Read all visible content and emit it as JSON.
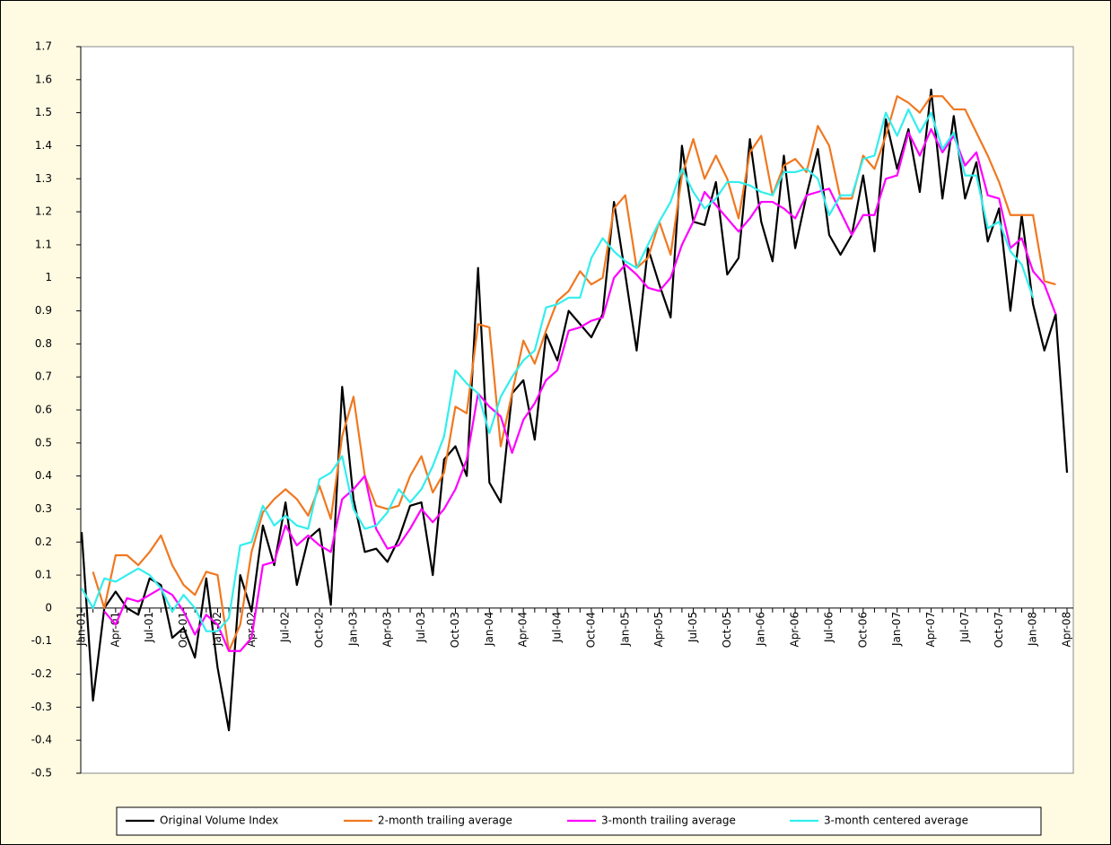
{
  "chart_data": {
    "type": "line",
    "categories": [
      "Jan-01",
      null,
      null,
      "Apr-01",
      null,
      null,
      "Jul-01",
      null,
      null,
      "Oct-01",
      null,
      null,
      "Jan-02",
      null,
      null,
      "Apr-02",
      null,
      null,
      "Jul-02",
      null,
      null,
      "Oct-02",
      null,
      null,
      "Jan-03",
      null,
      null,
      "Apr-03",
      null,
      null,
      "Jul-03",
      null,
      null,
      "Oct-03",
      null,
      null,
      "Jan-04",
      null,
      null,
      "Apr-04",
      null,
      null,
      "Jul-04",
      null,
      null,
      "Oct-04",
      null,
      null,
      "Jan-05",
      null,
      null,
      "Apr-05",
      null,
      null,
      "Jul-05",
      null,
      null,
      "Oct-05",
      null,
      null,
      "Jan-06",
      null,
      null,
      "Apr-06",
      null,
      null,
      "Jul-06",
      null,
      null,
      "Oct-06",
      null,
      null,
      "Jan-07",
      null,
      null,
      "Apr-07",
      null,
      null,
      "Jul-07",
      null,
      null,
      "Oct-07",
      null,
      null,
      "Jan-08",
      null,
      null,
      "Apr-08"
    ],
    "series": [
      {
        "name": "Original Volume Index",
        "color": "#000000",
        "values": [
          0.23,
          -0.28,
          0.0,
          0.05,
          0.0,
          -0.02,
          0.09,
          0.07,
          -0.09,
          -0.06,
          -0.15,
          0.09,
          -0.18,
          -0.37,
          0.1,
          -0.01,
          0.25,
          0.13,
          0.32,
          0.07,
          0.21,
          0.24,
          0.01,
          0.67,
          0.33,
          0.17,
          0.18,
          0.14,
          0.21,
          0.31,
          0.32,
          0.1,
          0.45,
          0.49,
          0.4,
          1.03,
          0.38,
          0.32,
          0.65,
          0.69,
          0.51,
          0.83,
          0.75,
          0.9,
          0.86,
          0.82,
          0.89,
          1.23,
          1.01,
          0.78,
          1.09,
          0.98,
          0.88,
          1.4,
          1.17,
          1.16,
          1.29,
          1.01,
          1.06,
          1.42,
          1.17,
          1.05,
          1.37,
          1.09,
          1.25,
          1.39,
          1.13,
          1.07,
          1.13,
          1.31,
          1.08,
          1.48,
          1.33,
          1.45,
          1.26,
          1.57,
          1.24,
          1.49,
          1.24,
          1.35,
          1.11,
          1.21,
          0.9,
          1.19,
          0.92,
          0.78,
          0.89,
          0.41
        ]
      },
      {
        "name": "2-month trailing average",
        "color": "#f07820",
        "values": [
          null,
          0.11,
          0.0,
          0.16,
          0.16,
          0.13,
          0.17,
          0.22,
          0.13,
          0.07,
          0.04,
          0.11,
          0.1,
          -0.13,
          -0.05,
          0.17,
          0.29,
          0.33,
          0.36,
          0.33,
          0.28,
          0.37,
          0.27,
          0.52,
          0.64,
          0.4,
          0.31,
          0.3,
          0.31,
          0.4,
          0.46,
          0.35,
          0.41,
          0.61,
          0.59,
          0.86,
          0.85,
          0.49,
          0.65,
          0.81,
          0.74,
          0.84,
          0.93,
          0.96,
          1.02,
          0.98,
          1.0,
          1.21,
          1.25,
          1.03,
          1.06,
          1.17,
          1.07,
          1.31,
          1.42,
          1.3,
          1.37,
          1.3,
          1.18,
          1.38,
          1.43,
          1.25,
          1.34,
          1.36,
          1.32,
          1.46,
          1.4,
          1.24,
          1.24,
          1.37,
          1.33,
          1.43,
          1.55,
          1.53,
          1.5,
          1.55,
          1.55,
          1.51,
          1.51,
          1.44,
          1.37,
          1.29,
          1.19,
          1.19,
          1.19,
          0.99,
          0.98,
          null
        ]
      },
      {
        "name": "3-month trailing average",
        "color": "#ff00ff",
        "values": [
          null,
          null,
          -0.01,
          -0.05,
          0.03,
          0.02,
          0.04,
          0.06,
          0.04,
          -0.01,
          -0.08,
          -0.02,
          -0.05,
          -0.13,
          -0.13,
          -0.09,
          0.13,
          0.14,
          0.25,
          0.19,
          0.22,
          0.19,
          0.17,
          0.33,
          0.36,
          0.4,
          0.24,
          0.18,
          0.19,
          0.24,
          0.3,
          0.26,
          0.3,
          0.36,
          0.45,
          0.65,
          0.61,
          0.58,
          0.47,
          0.57,
          0.62,
          0.69,
          0.72,
          0.84,
          0.85,
          0.87,
          0.88,
          1.0,
          1.04,
          1.01,
          0.97,
          0.96,
          1.0,
          1.1,
          1.17,
          1.26,
          1.22,
          1.18,
          1.14,
          1.18,
          1.23,
          1.23,
          1.21,
          1.18,
          1.25,
          1.26,
          1.27,
          1.2,
          1.13,
          1.19,
          1.19,
          1.3,
          1.31,
          1.44,
          1.37,
          1.45,
          1.38,
          1.43,
          1.34,
          1.38,
          1.25,
          1.24,
          1.09,
          1.12,
          1.02,
          0.98,
          0.89,
          null
        ]
      },
      {
        "name": "3-month centered average",
        "color": "#33eeee",
        "values": [
          0.06,
          0.0,
          0.09,
          0.08,
          0.1,
          0.12,
          0.1,
          0.06,
          -0.01,
          0.04,
          0.0,
          -0.07,
          -0.07,
          -0.03,
          0.19,
          0.2,
          0.31,
          0.25,
          0.28,
          0.25,
          0.24,
          0.39,
          0.41,
          0.46,
          0.3,
          0.24,
          0.25,
          0.29,
          0.36,
          0.32,
          0.36,
          0.43,
          0.52,
          0.72,
          0.68,
          0.65,
          0.53,
          0.64,
          0.7,
          0.75,
          0.78,
          0.91,
          0.92,
          0.94,
          0.94,
          1.06,
          1.12,
          1.08,
          1.05,
          1.03,
          1.1,
          1.17,
          1.23,
          1.33,
          1.26,
          1.21,
          1.24,
          1.29,
          1.29,
          1.28,
          1.26,
          1.25,
          1.32,
          1.32,
          1.33,
          1.3,
          1.19,
          1.25,
          1.25,
          1.36,
          1.37,
          1.5,
          1.43,
          1.51,
          1.44,
          1.5,
          1.39,
          1.44,
          1.31,
          1.31,
          1.15,
          1.17,
          1.08,
          1.04,
          0.94,
          null,
          null,
          null
        ]
      }
    ],
    "ylim": [
      -0.5,
      1.7
    ],
    "yticks": [
      -0.5,
      -0.4,
      -0.3,
      -0.2,
      -0.1,
      0,
      0.1,
      0.2,
      0.3,
      0.4,
      0.5,
      0.6,
      0.7,
      0.8,
      0.9,
      1,
      1.1,
      1.2,
      1.3,
      1.4,
      1.5,
      1.6,
      1.7
    ],
    "legend": "bottom"
  }
}
